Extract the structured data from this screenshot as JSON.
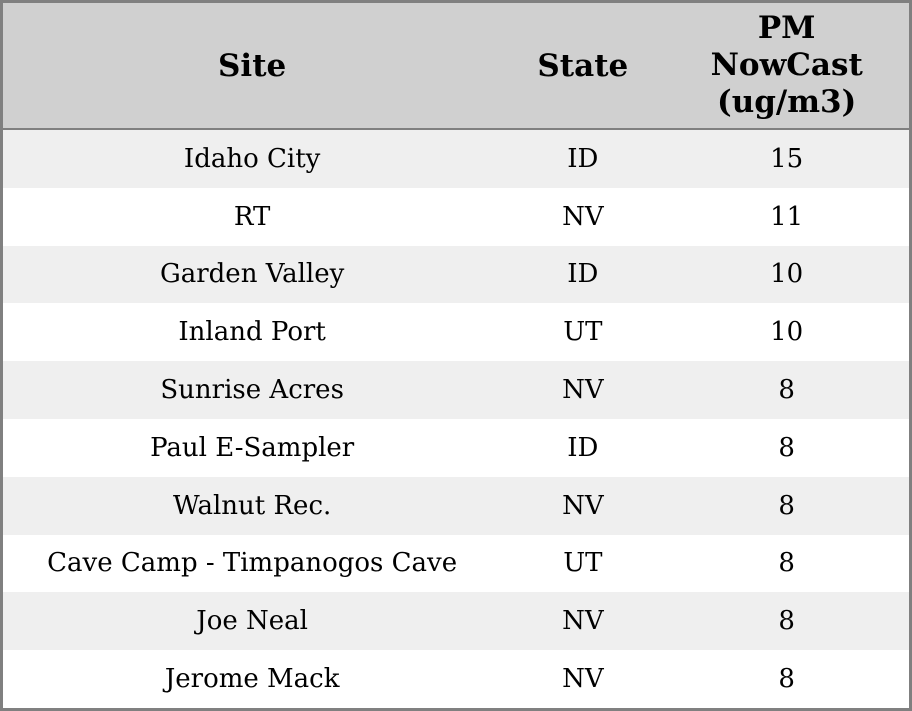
{
  "chart_data": {
    "type": "table",
    "title": "",
    "columns": [
      "Site",
      "State",
      "PM NowCast (ug/m3)"
    ],
    "rows": [
      [
        "Idaho City",
        "ID",
        15
      ],
      [
        "RT",
        "NV",
        11
      ],
      [
        "Garden Valley",
        "ID",
        10
      ],
      [
        "Inland Port",
        "UT",
        10
      ],
      [
        "Sunrise Acres",
        "NV",
        8
      ],
      [
        "Paul E-Sampler",
        "ID",
        8
      ],
      [
        "Walnut Rec.",
        "NV",
        8
      ],
      [
        "Cave Camp - Timpanogos Cave",
        "UT",
        8
      ],
      [
        "Joe Neal",
        "NV",
        8
      ],
      [
        "Jerome Mack",
        "NV",
        8
      ]
    ],
    "layout": {
      "striped": true,
      "header_position": "top",
      "cell_alignment": "center",
      "grid": "none",
      "legend": "none"
    }
  },
  "header_display": {
    "pm_lines": [
      "PM",
      "NowCast",
      "(ug/m3)"
    ]
  },
  "colors": {
    "header-bg": "#d0d0d0",
    "row-alt-bg": "#efefef",
    "row-bg": "#ffffff",
    "border": "#808080",
    "text": "#000000"
  }
}
